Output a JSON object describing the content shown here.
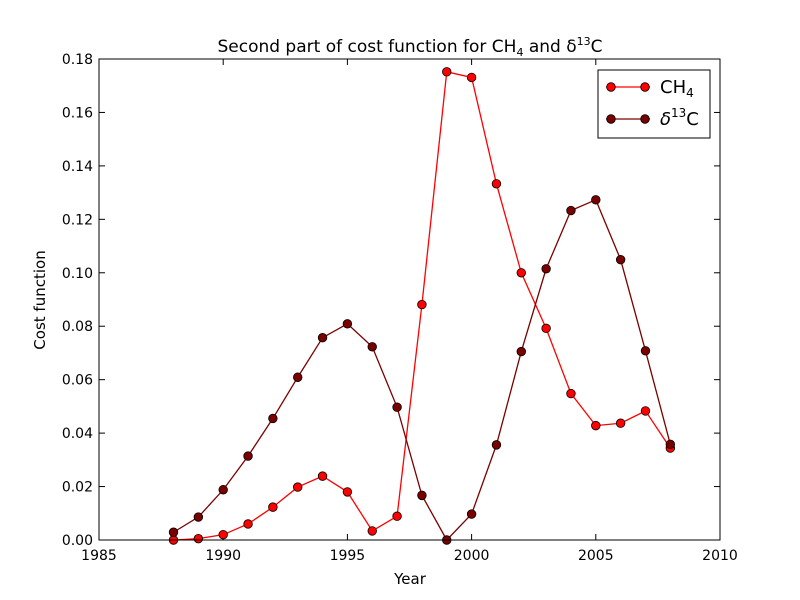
{
  "chart_data": {
    "type": "line",
    "title": {
      "prefix": "Second part of cost function for CH",
      "ch4_sub": "4",
      "middle": " and ",
      "delta": "δ",
      "sup": "13",
      "suffix": "C"
    },
    "xlabel": "Year",
    "ylabel": "Cost function",
    "xlim": [
      1985,
      2010
    ],
    "ylim": [
      0,
      0.18
    ],
    "xticks": [
      "1985",
      "1990",
      "1995",
      "2000",
      "2005",
      "2010"
    ],
    "yticks": [
      "0.00",
      "0.02",
      "0.04",
      "0.06",
      "0.08",
      "0.10",
      "0.12",
      "0.14",
      "0.16",
      "0.18"
    ],
    "grid": false,
    "legend_position": "top-right",
    "x": [
      1988,
      1989,
      1990,
      1991,
      1992,
      1993,
      1994,
      1995,
      1996,
      1997,
      1998,
      1999,
      2000,
      2001,
      2002,
      2003,
      2004,
      2005,
      2006,
      2007,
      2008
    ],
    "series": [
      {
        "name": "CH4",
        "legend": {
          "base": "CH",
          "sub": "4"
        },
        "color": "#ff0000",
        "values": [
          0.0,
          0.0005,
          0.002,
          0.006,
          0.0123,
          0.0198,
          0.0239,
          0.018,
          0.0034,
          0.0089,
          0.0881,
          0.1752,
          0.1731,
          0.1333,
          0.1,
          0.0792,
          0.0548,
          0.0428,
          0.0437,
          0.0483,
          0.0344
        ]
      },
      {
        "name": "δ13C",
        "legend": {
          "base": "δ",
          "sup": "13",
          "tail": "C"
        },
        "color": "#7a0000",
        "values": [
          0.0029,
          0.0086,
          0.0188,
          0.0314,
          0.0455,
          0.0609,
          0.0757,
          0.0809,
          0.0723,
          0.0497,
          0.0167,
          0.0,
          0.0097,
          0.0356,
          0.0705,
          0.1015,
          0.1233,
          0.1273,
          0.1049,
          0.0708,
          0.0358
        ]
      }
    ]
  }
}
